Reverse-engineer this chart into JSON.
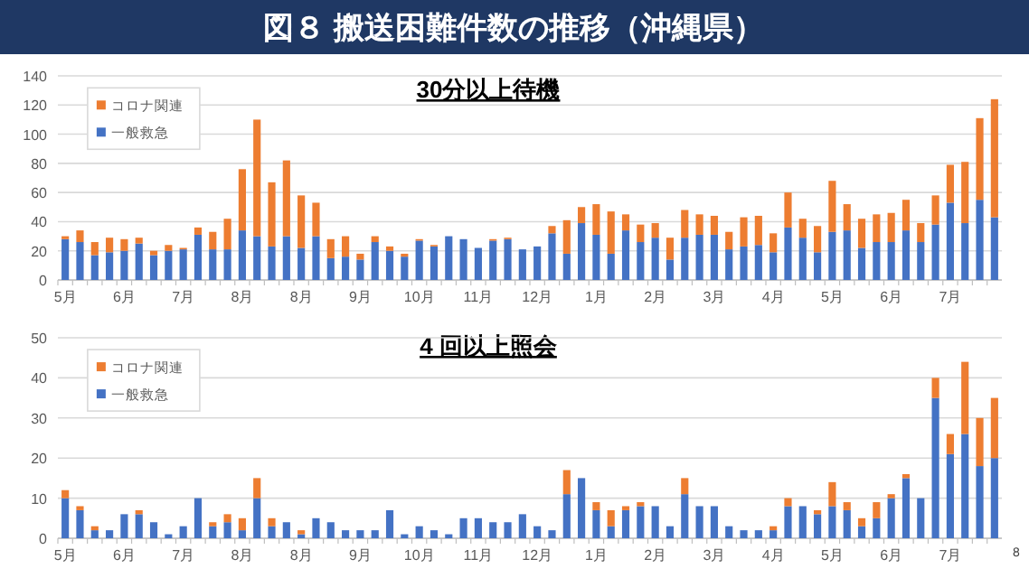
{
  "chart_data": [
    {
      "type": "bar",
      "title": "図８ 搬送困難件数の推移（沖縄県）",
      "subtitle": "30分以上待機",
      "categories": [
        "5月",
        null,
        null,
        null,
        "6月",
        null,
        null,
        null,
        "7月",
        null,
        null,
        null,
        "8月",
        null,
        null,
        null,
        "8月",
        null,
        null,
        null,
        "9月",
        null,
        null,
        null,
        "10月",
        null,
        null,
        null,
        "11月",
        null,
        null,
        null,
        "12月",
        null,
        null,
        null,
        "1月",
        null,
        null,
        null,
        "2月",
        null,
        null,
        null,
        "3月",
        null,
        null,
        null,
        "4月",
        null,
        null,
        null,
        "5月",
        null,
        null,
        null,
        "6月",
        null,
        null,
        null,
        "7月",
        null,
        null,
        null
      ],
      "series": [
        {
          "name": "一般救急",
          "color": "#4472c4",
          "values": [
            28,
            26,
            17,
            19,
            20,
            25,
            17,
            20,
            21,
            31,
            21,
            21,
            34,
            30,
            23,
            30,
            22,
            30,
            15,
            16,
            14,
            26,
            20,
            16,
            27,
            23,
            30,
            28,
            22,
            27,
            28,
            21,
            23,
            32,
            18,
            39,
            31,
            18,
            34,
            26,
            29,
            14,
            29,
            31,
            31,
            21,
            23,
            24,
            19,
            36,
            29,
            19,
            33,
            34,
            22,
            26,
            26,
            34,
            26,
            38,
            53,
            39,
            55,
            43
          ]
        },
        {
          "name": "コロナ関連",
          "color": "#ed7d31",
          "values": [
            2,
            8,
            9,
            10,
            8,
            4,
            3,
            4,
            1,
            5,
            12,
            21,
            42,
            80,
            44,
            52,
            36,
            23,
            13,
            14,
            4,
            4,
            3,
            2,
            1,
            1,
            0,
            0,
            0,
            1,
            1,
            0,
            0,
            5,
            23,
            11,
            21,
            29,
            11,
            12,
            10,
            15,
            19,
            14,
            13,
            12,
            20,
            20,
            13,
            24,
            13,
            18,
            35,
            18,
            20,
            19,
            20,
            21,
            13,
            20,
            26,
            42,
            56,
            81
          ]
        }
      ],
      "stacked": true,
      "ylim": [
        0,
        140
      ],
      "yticks": [
        0,
        20,
        40,
        60,
        80,
        100,
        120,
        140
      ],
      "grid": "y",
      "legend": "top left"
    },
    {
      "type": "bar",
      "title": "4 回以上照会",
      "categories": [
        "5月",
        null,
        null,
        null,
        "6月",
        null,
        null,
        null,
        "7月",
        null,
        null,
        null,
        "8月",
        null,
        null,
        null,
        "8月",
        null,
        null,
        null,
        "9月",
        null,
        null,
        null,
        "10月",
        null,
        null,
        null,
        "11月",
        null,
        null,
        null,
        "12月",
        null,
        null,
        null,
        "1月",
        null,
        null,
        null,
        "2月",
        null,
        null,
        null,
        "3月",
        null,
        null,
        null,
        "4月",
        null,
        null,
        null,
        "5月",
        null,
        null,
        null,
        "6月",
        null,
        null,
        null,
        "7月",
        null,
        null,
        null
      ],
      "series": [
        {
          "name": "一般救急",
          "color": "#4472c4",
          "values": [
            10,
            7,
            2,
            2,
            6,
            6,
            4,
            1,
            3,
            10,
            3,
            4,
            2,
            10,
            3,
            4,
            1,
            5,
            4,
            2,
            2,
            2,
            7,
            1,
            3,
            2,
            1,
            5,
            5,
            4,
            4,
            6,
            3,
            2,
            11,
            15,
            7,
            3,
            7,
            8,
            8,
            3,
            11,
            8,
            8,
            3,
            2,
            2,
            2,
            8,
            8,
            6,
            8,
            7,
            3,
            5,
            10,
            15,
            10,
            35,
            21,
            26,
            18,
            20
          ]
        },
        {
          "name": "コロナ関連",
          "color": "#ed7d31",
          "values": [
            2,
            1,
            1,
            0,
            0,
            1,
            0,
            0,
            0,
            0,
            1,
            2,
            3,
            5,
            2,
            0,
            1,
            0,
            0,
            0,
            0,
            0,
            0,
            0,
            0,
            0,
            0,
            0,
            0,
            0,
            0,
            0,
            0,
            0,
            6,
            0,
            2,
            4,
            1,
            1,
            0,
            0,
            4,
            0,
            0,
            0,
            0,
            0,
            1,
            2,
            0,
            1,
            6,
            2,
            2,
            4,
            1,
            1,
            0,
            5,
            5,
            18,
            12,
            15
          ]
        }
      ],
      "stacked": true,
      "ylim": [
        0,
        50
      ],
      "yticks": [
        0,
        10,
        20,
        30,
        40,
        50
      ],
      "grid": "y",
      "legend": "top left",
      "annotations": [
        "8"
      ]
    }
  ]
}
